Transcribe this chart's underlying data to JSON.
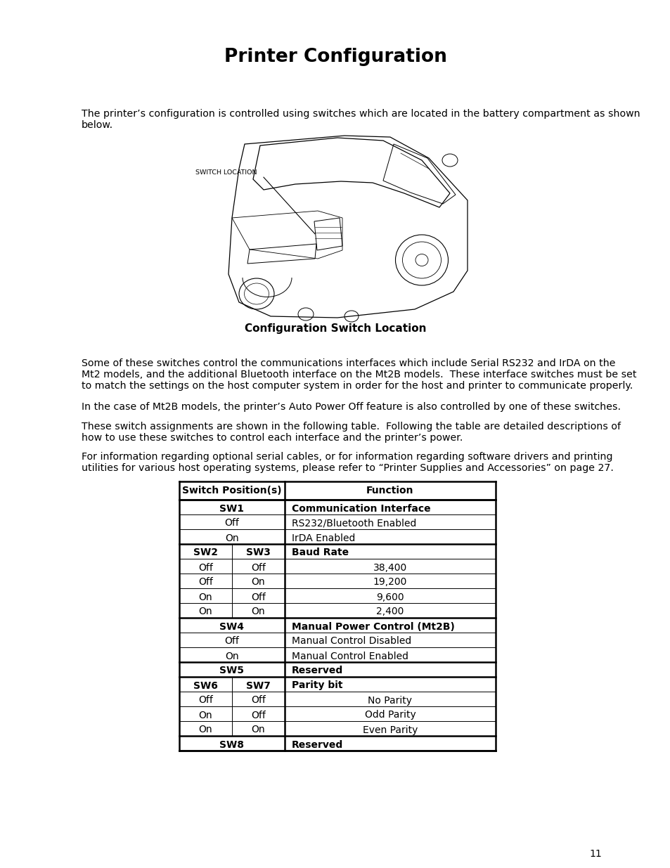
{
  "title": "Printer Configuration",
  "background_color": "#ffffff",
  "text_color": "#000000",
  "page_number": "11",
  "body_text_1": "The printer’s configuration is controlled using switches which are located in the battery compartment as shown\nbelow.",
  "image_caption": "Configuration Switch Location",
  "body_text_2": "Some of these switches control the communications interfaces which include Serial RS232 and IrDA on the\nMt2 models, and the additional Bluetooth interface on the Mt2B models.  These interface switches must be set\nto match the settings on the host computer system in order for the host and printer to communicate properly.",
  "body_text_3": "In the case of Mt2B models, the printer’s Auto Power Off feature is also controlled by one of these switches.",
  "body_text_4": "These switch assignments are shown in the following table.  Following the table are detailed descriptions of\nhow to use these switches to control each interface and the printer’s power.",
  "body_text_5": "For information regarding optional serial cables, or for information regarding software drivers and printing\nutilities for various host operating systems, please refer to “Printer Supplies and Accessories” on page 27.",
  "switch_label": "SWITCH LOCATION",
  "table_col1_header": "Switch Position(s)",
  "table_col2_header": "Function",
  "table_rows": [
    {
      "type": "section",
      "col1": "SW1",
      "col2": "Communication Interface"
    },
    {
      "type": "data",
      "col1": "Off",
      "col2": "RS232/Bluetooth Enabled"
    },
    {
      "type": "data",
      "col1": "On",
      "col2": "IrDA Enabled"
    },
    {
      "type": "section2",
      "col1a": "SW2",
      "col1b": "SW3",
      "col2": "Baud Rate"
    },
    {
      "type": "data2",
      "col1a": "Off",
      "col1b": "Off",
      "col2": "38,400"
    },
    {
      "type": "data2",
      "col1a": "Off",
      "col1b": "On",
      "col2": "19,200"
    },
    {
      "type": "data2",
      "col1a": "On",
      "col1b": "Off",
      "col2": "9,600"
    },
    {
      "type": "data2",
      "col1a": "On",
      "col1b": "On",
      "col2": "2,400"
    },
    {
      "type": "section",
      "col1": "SW4",
      "col2": "Manual Power Control (Mt2B)"
    },
    {
      "type": "data",
      "col1": "Off",
      "col2": "Manual Control Disabled"
    },
    {
      "type": "data",
      "col1": "On",
      "col2": "Manual Control Enabled"
    },
    {
      "type": "section",
      "col1": "SW5",
      "col2": "Reserved"
    },
    {
      "type": "section2",
      "col1a": "SW6",
      "col1b": "SW7",
      "col2": "Parity bit"
    },
    {
      "type": "data2",
      "col1a": "Off",
      "col1b": "Off",
      "col2": "No Parity"
    },
    {
      "type": "data2",
      "col1a": "On",
      "col1b": "Off",
      "col2": "Odd Parity"
    },
    {
      "type": "data2",
      "col1a": "On",
      "col1b": "On",
      "col2": "Even Parity"
    },
    {
      "type": "section",
      "col1": "SW8",
      "col2": "Reserved"
    }
  ]
}
